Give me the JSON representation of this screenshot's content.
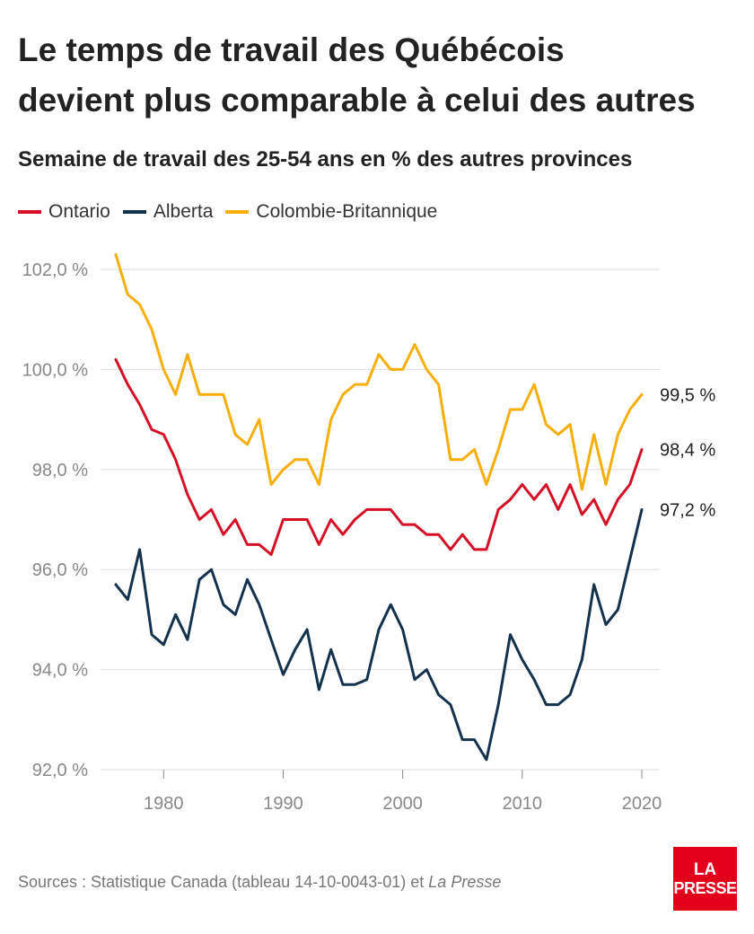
{
  "title_line1": "Le temps de travail des Québécois",
  "title_line2": "devient plus comparable à celui des autres",
  "subtitle": "Semaine de travail des 25-54 ans en % des autres provinces",
  "source_prefix": "Sources : Statistique Canada (tableau 14-10-0043-01) et ",
  "source_italic": "La Presse",
  "logo_line1": "LA",
  "logo_line2": "PRESSE",
  "chart_data": {
    "type": "line",
    "title": "Le temps de travail des Québécois devient plus comparable à celui des autres",
    "subtitle": "Semaine de travail des 25-54 ans en % des autres provinces",
    "x_ticks": [
      1980,
      1990,
      2000,
      2010,
      2020
    ],
    "y_ticks": [
      92,
      94,
      96,
      98,
      100,
      102
    ],
    "y_tick_labels": [
      "92,0 %",
      "94,0 %",
      "96,0 %",
      "98,0 %",
      "100,0 %",
      "102,0 %"
    ],
    "xlim": [
      1976,
      2020
    ],
    "ylim": [
      92,
      102.3
    ],
    "grid": true,
    "legend_position": "top-left",
    "x": [
      1976,
      1977,
      1978,
      1979,
      1980,
      1981,
      1982,
      1983,
      1984,
      1985,
      1986,
      1987,
      1988,
      1989,
      1990,
      1991,
      1992,
      1993,
      1994,
      1995,
      1996,
      1997,
      1998,
      1999,
      2000,
      2001,
      2002,
      2003,
      2004,
      2005,
      2006,
      2007,
      2008,
      2009,
      2010,
      2011,
      2012,
      2013,
      2014,
      2015,
      2016,
      2017,
      2018,
      2019,
      2020
    ],
    "series": [
      {
        "name": "Ontario",
        "color": "#d50f25",
        "end_label": "98,4 %",
        "values": [
          100.2,
          99.7,
          99.3,
          98.8,
          98.7,
          98.2,
          97.5,
          97.0,
          97.2,
          96.7,
          97.0,
          96.5,
          96.5,
          96.3,
          97.0,
          97.0,
          97.0,
          96.5,
          97.0,
          96.7,
          97.0,
          97.2,
          97.2,
          97.2,
          96.9,
          96.9,
          96.7,
          96.7,
          96.4,
          96.7,
          96.4,
          96.4,
          97.2,
          97.4,
          97.7,
          97.4,
          97.7,
          97.2,
          97.7,
          97.1,
          97.4,
          96.9,
          97.4,
          97.7,
          98.4
        ]
      },
      {
        "name": "Alberta",
        "color": "#14324d",
        "end_label": "97,2 %",
        "values": [
          95.7,
          95.4,
          96.4,
          94.7,
          94.5,
          95.1,
          94.6,
          95.8,
          96.0,
          95.3,
          95.1,
          95.8,
          95.3,
          94.6,
          93.9,
          94.4,
          94.8,
          93.6,
          94.4,
          93.7,
          93.7,
          93.8,
          94.8,
          95.3,
          94.8,
          93.8,
          94.0,
          93.5,
          93.3,
          92.6,
          92.6,
          92.2,
          93.3,
          94.7,
          94.2,
          93.8,
          93.3,
          93.3,
          93.5,
          94.2,
          95.7,
          94.9,
          95.2,
          96.2,
          97.2
        ]
      },
      {
        "name": "Colombie-Britannique",
        "color": "#f6ae09",
        "end_label": "99,5 %",
        "values": [
          102.3,
          101.5,
          101.3,
          100.8,
          100.0,
          99.5,
          100.3,
          99.5,
          99.5,
          99.5,
          98.7,
          98.5,
          99.0,
          97.7,
          98.0,
          98.2,
          98.2,
          97.7,
          99.0,
          99.5,
          99.7,
          99.7,
          100.3,
          100.0,
          100.0,
          100.5,
          100.0,
          99.7,
          98.2,
          98.2,
          98.4,
          97.7,
          98.4,
          99.2,
          99.2,
          99.7,
          98.9,
          98.7,
          98.9,
          97.6,
          98.7,
          97.7,
          98.7,
          99.2,
          99.5
        ]
      }
    ]
  }
}
